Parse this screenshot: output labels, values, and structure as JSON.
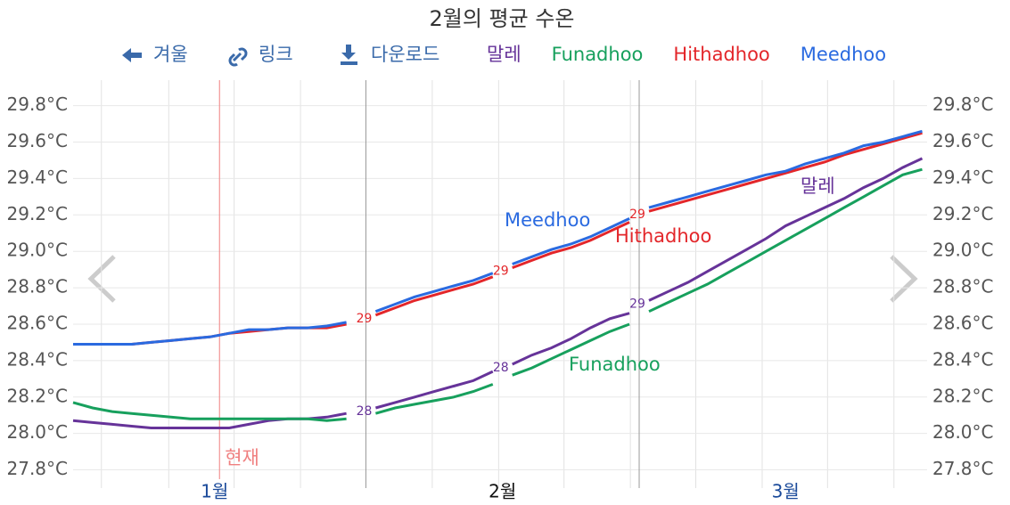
{
  "chart_data": {
    "type": "line",
    "title": "2월의 평균 수온",
    "toolbar": [
      "겨울",
      "링크",
      "다운로드"
    ],
    "x": [
      1,
      3,
      5,
      7,
      9,
      11,
      13,
      15,
      17,
      19,
      21,
      23,
      25,
      27,
      29,
      31,
      32,
      34,
      36,
      38,
      40,
      42,
      44,
      45,
      46,
      48,
      50,
      52,
      54,
      56,
      58,
      59,
      60,
      62,
      64,
      66,
      68,
      70,
      72,
      74,
      76,
      78,
      80,
      82,
      84,
      86,
      88
    ],
    "series": [
      {
        "name": "말레",
        "color": "#663399",
        "values": [
          28.07,
          28.06,
          28.05,
          28.04,
          28.03,
          28.03,
          28.03,
          28.03,
          28.03,
          28.05,
          28.07,
          28.08,
          28.08,
          28.09,
          28.11,
          null,
          28.14,
          28.17,
          28.2,
          28.23,
          28.26,
          28.29,
          28.34,
          null,
          28.38,
          28.43,
          28.47,
          28.52,
          28.58,
          28.63,
          28.66,
          null,
          28.73,
          28.78,
          28.83,
          28.89,
          28.95,
          29.01,
          29.07,
          29.14,
          29.19,
          29.24,
          29.29,
          29.35,
          29.4,
          29.46,
          29.51
        ],
        "point_labels": [
          {
            "x": 32,
            "label": "28"
          },
          {
            "x": 46,
            "label": "28"
          },
          {
            "x": 60,
            "label": "29"
          }
        ]
      },
      {
        "name": "Funadhoo",
        "color": "#17a05d",
        "values": [
          28.17,
          28.14,
          28.12,
          28.11,
          28.1,
          28.09,
          28.08,
          28.08,
          28.08,
          28.08,
          28.08,
          28.08,
          28.08,
          28.07,
          28.08,
          null,
          28.11,
          28.14,
          28.16,
          28.18,
          28.2,
          28.23,
          28.27,
          null,
          28.32,
          28.36,
          28.41,
          28.46,
          28.51,
          28.56,
          28.6,
          null,
          28.67,
          28.72,
          28.77,
          28.82,
          28.88,
          28.94,
          29.0,
          29.06,
          29.12,
          29.18,
          29.24,
          29.3,
          29.36,
          29.42,
          29.45
        ]
      },
      {
        "name": "Hithadhoo",
        "color": "#e3262a",
        "values": [
          28.49,
          28.49,
          28.49,
          28.49,
          28.5,
          28.51,
          28.52,
          28.53,
          28.55,
          28.56,
          28.57,
          28.58,
          28.58,
          28.58,
          28.6,
          null,
          28.65,
          28.69,
          28.73,
          28.76,
          28.79,
          28.82,
          28.86,
          null,
          28.91,
          28.95,
          28.99,
          29.02,
          29.06,
          29.11,
          29.16,
          null,
          29.22,
          29.25,
          29.28,
          29.31,
          29.34,
          29.37,
          29.4,
          29.43,
          29.46,
          29.49,
          29.53,
          29.56,
          29.59,
          29.62,
          29.65
        ],
        "point_labels": [
          {
            "x": 32,
            "label": "29"
          },
          {
            "x": 46,
            "label": "29"
          },
          {
            "x": 60,
            "label": "29"
          }
        ]
      },
      {
        "name": "Meedhoo",
        "color": "#2a6ae0",
        "values": [
          28.49,
          28.49,
          28.49,
          28.49,
          28.5,
          28.51,
          28.52,
          28.53,
          28.55,
          28.57,
          28.57,
          28.58,
          28.58,
          28.59,
          28.61,
          null,
          28.67,
          28.71,
          28.75,
          28.78,
          28.81,
          28.84,
          28.88,
          null,
          28.93,
          28.97,
          29.01,
          29.04,
          29.08,
          29.13,
          29.18,
          null,
          29.24,
          29.27,
          29.3,
          29.33,
          29.36,
          29.39,
          29.42,
          29.44,
          29.48,
          29.51,
          29.54,
          29.58,
          29.6,
          29.63,
          29.66
        ]
      }
    ],
    "xlim": [
      1,
      88.5
    ],
    "xticks": [
      {
        "value": 15.5,
        "label": "1월"
      },
      {
        "value": 45,
        "label": "2월"
      },
      {
        "value": 74,
        "label": "3월"
      }
    ],
    "month_lines": [
      31,
      59
    ],
    "xgrid": [
      3.9,
      10.8,
      17.5,
      24.3,
      37.8,
      44.6,
      51.3,
      58.1,
      64.8,
      71.6,
      78.3,
      85.1
    ],
    "now": {
      "value": 16,
      "label": "현재"
    },
    "ylim": [
      27.7,
      29.94
    ],
    "yticks": [
      {
        "value": 27.8,
        "label": "27.8°C"
      },
      {
        "value": 28.0,
        "label": "28.0°C"
      },
      {
        "value": 28.2,
        "label": "28.2°C"
      },
      {
        "value": 28.4,
        "label": "28.4°C"
      },
      {
        "value": 28.6,
        "label": "28.6°C"
      },
      {
        "value": 28.8,
        "label": "28.8°C"
      },
      {
        "value": 29.0,
        "label": "29.0°C"
      },
      {
        "value": 29.2,
        "label": "29.2°C"
      },
      {
        "value": 29.4,
        "label": "29.4°C"
      },
      {
        "value": 29.6,
        "label": "29.6°C"
      },
      {
        "value": 29.8,
        "label": "29.8°C"
      }
    ],
    "grid": true
  }
}
